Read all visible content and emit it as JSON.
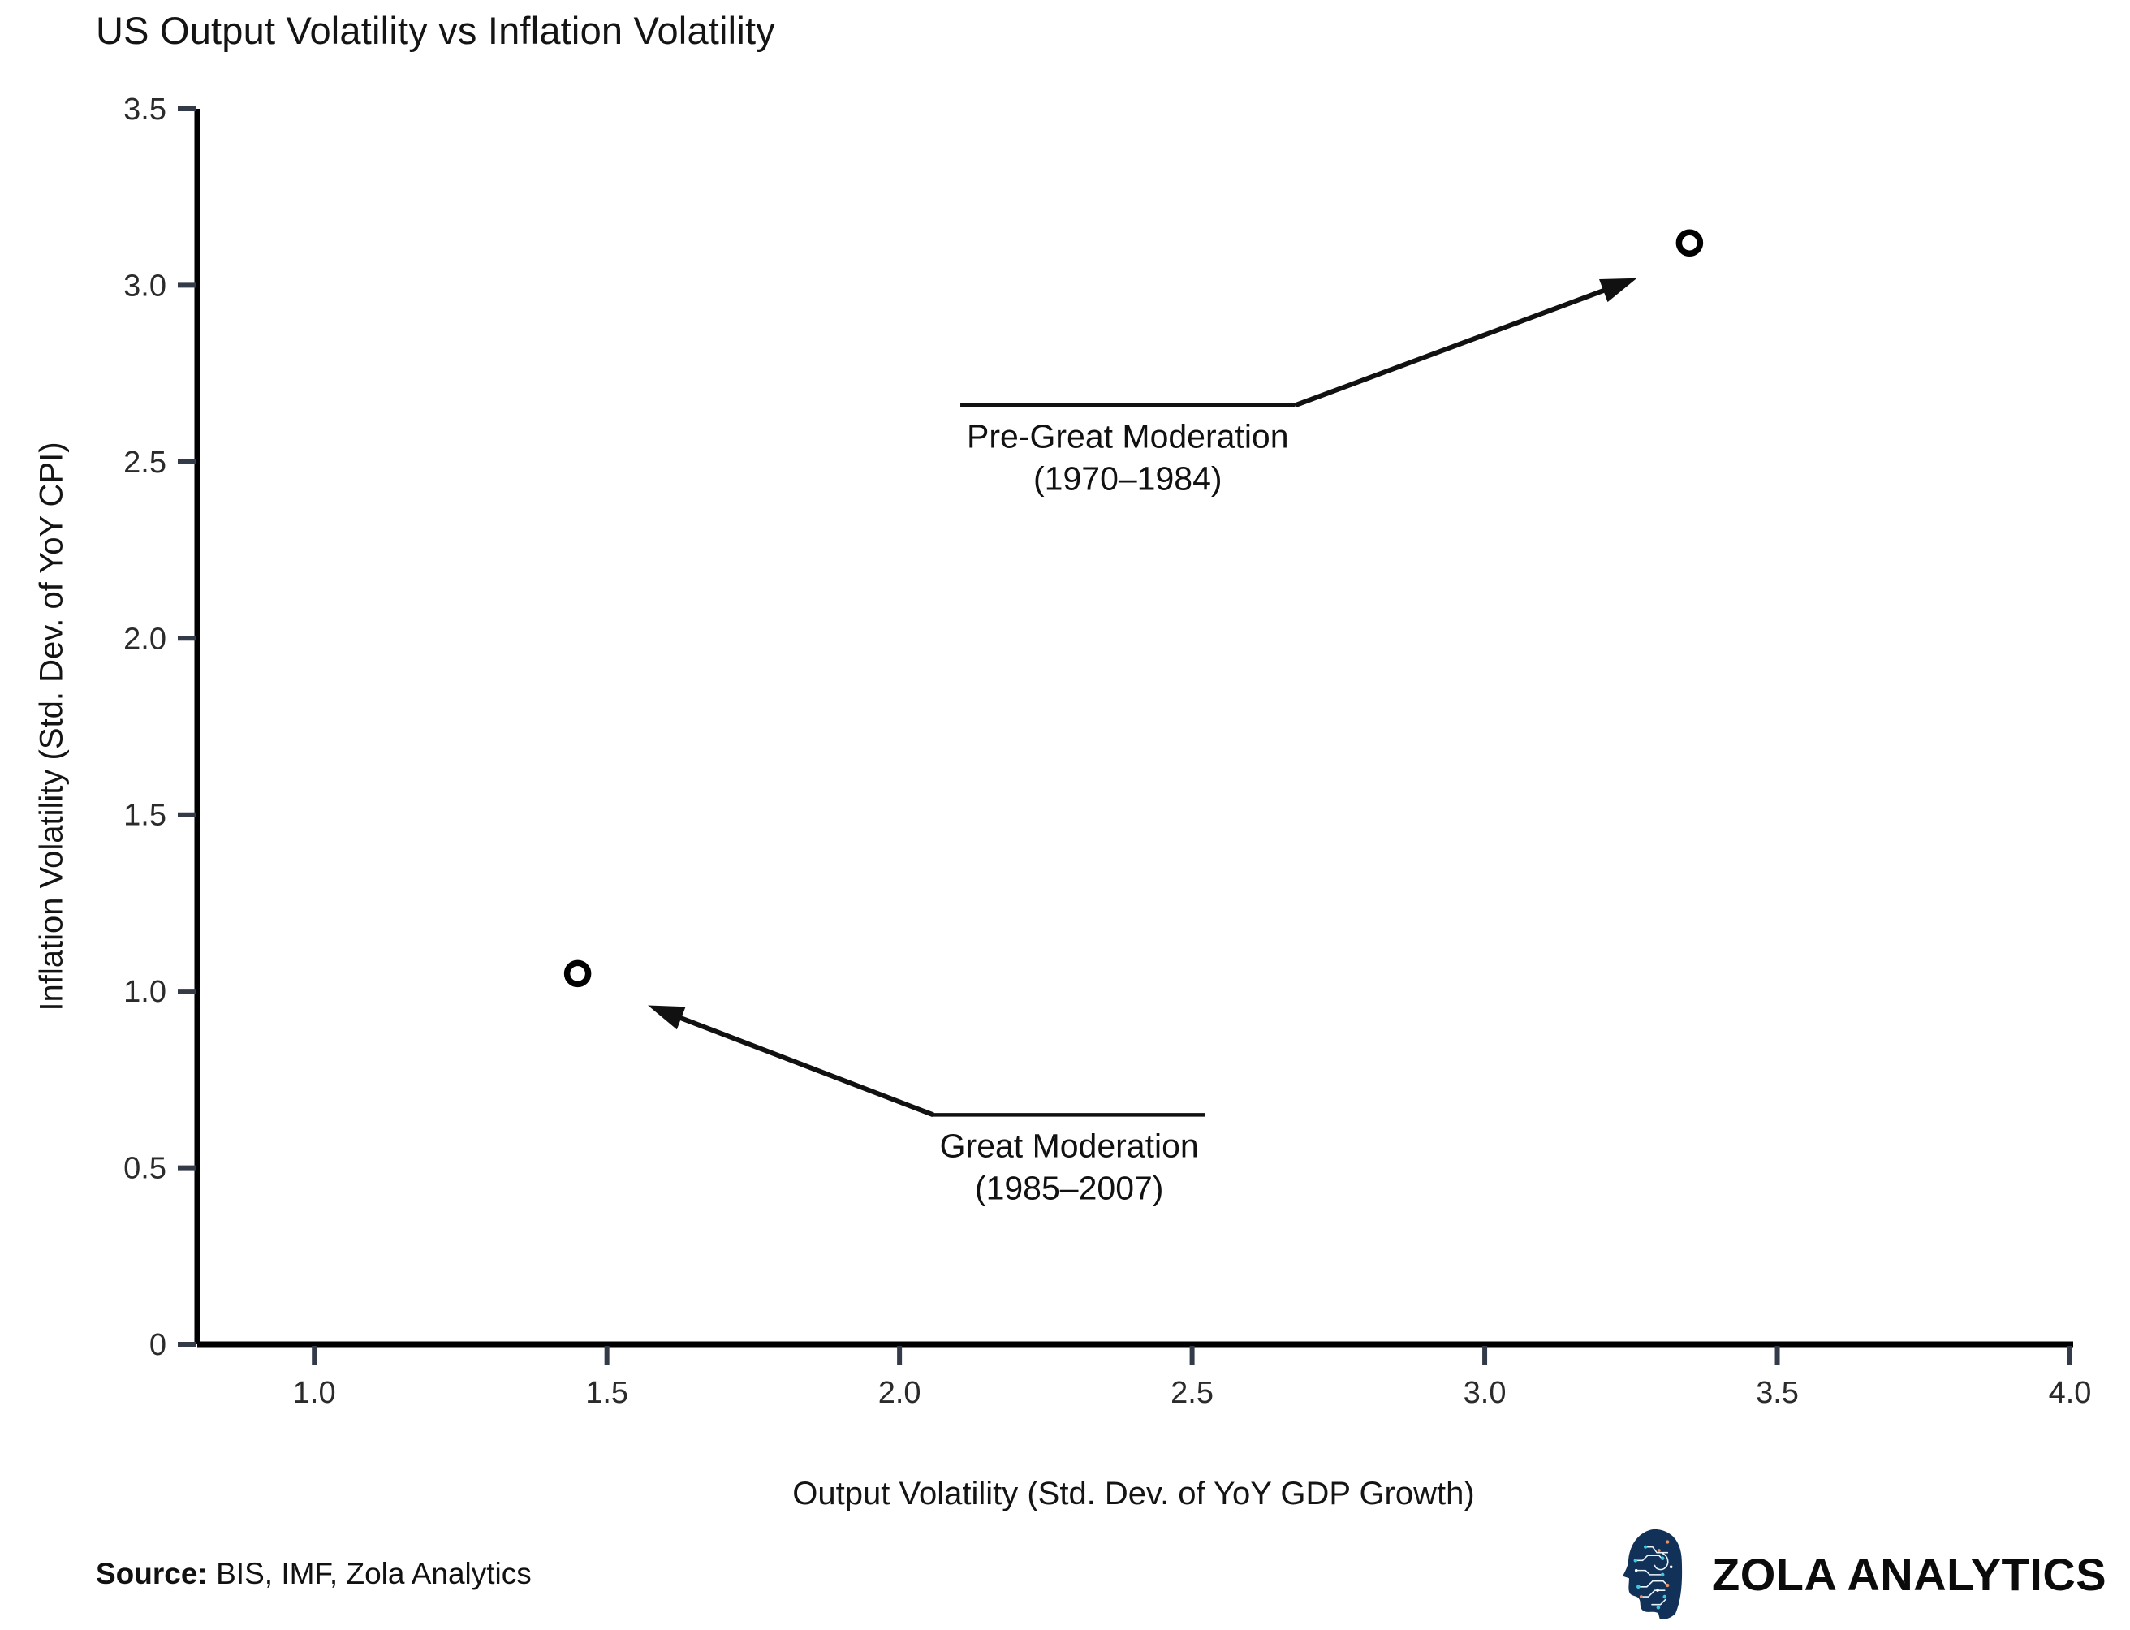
{
  "chart_data": {
    "type": "scatter",
    "title": "US Output Volatility vs Inflation Volatility",
    "xlabel": "Output Volatility (Std. Dev. of YoY GDP Growth)",
    "ylabel": "Inflation Volatility (Std. Dev. of YoY CPI)",
    "xlim": [
      0.8,
      4.0
    ],
    "ylim": [
      0,
      3.5
    ],
    "grid": false,
    "legend": "none",
    "x_ticks": [
      {
        "value": 1.0,
        "label": "1.0"
      },
      {
        "value": 1.5,
        "label": "1.5"
      },
      {
        "value": 2.0,
        "label": "2.0"
      },
      {
        "value": 2.5,
        "label": "2.5"
      },
      {
        "value": 3.0,
        "label": "3.0"
      },
      {
        "value": 3.5,
        "label": "3.5"
      },
      {
        "value": 4.0,
        "label": "4.0"
      }
    ],
    "y_ticks": [
      {
        "value": 0,
        "label": "0"
      },
      {
        "value": 0.5,
        "label": "0.5"
      },
      {
        "value": 1.0,
        "label": "1.0"
      },
      {
        "value": 1.5,
        "label": "1.5"
      },
      {
        "value": 2.0,
        "label": "2.0"
      },
      {
        "value": 2.5,
        "label": "2.5"
      },
      {
        "value": 3.0,
        "label": "3.0"
      },
      {
        "value": 3.5,
        "label": "3.5"
      }
    ],
    "points": [
      {
        "name": "Pre-Great Moderation (1970–1984)",
        "x": 3.35,
        "y": 3.12
      },
      {
        "name": "Great Moderation (1985–2007)",
        "x": 1.45,
        "y": 1.05
      }
    ],
    "annotations": [
      {
        "line1": "Pre-Great Moderation",
        "line2": "(1970–1984)",
        "text_x": 2.39,
        "bar_y": 2.66,
        "tip_x": 3.26,
        "tip_y": 3.02
      },
      {
        "line1": "Great Moderation",
        "line2": "(1985–2007)",
        "text_x": 2.29,
        "bar_y": 0.65,
        "tip_x": 1.57,
        "tip_y": 0.96
      }
    ],
    "style": {
      "axis_color": "#000000",
      "tick_color": "#333b49",
      "tick_label_color": "#2b2b2b",
      "marker_fill": "#ffffff",
      "marker_stroke": "#000000",
      "annotation_color": "#111111"
    }
  },
  "footer": {
    "source_label": "Source:",
    "source_text": "BIS, IMF, Zola Analytics",
    "brand": "ZOLA ANALYTICS"
  },
  "logo": {
    "head_fill": "#123158",
    "trace_color": "#e8f4fb",
    "dot_teal": "#3bc8e0",
    "dot_orange": "#e8926a"
  }
}
